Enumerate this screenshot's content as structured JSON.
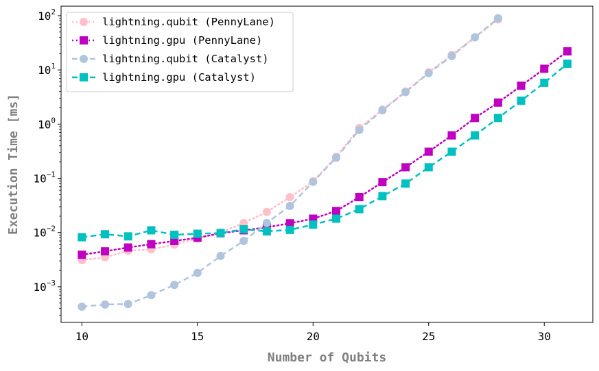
{
  "chart_data": {
    "type": "line",
    "title": "",
    "xlabel": "Number of Qubits",
    "ylabel": "Execution Time [ms]",
    "xscale": "linear",
    "yscale": "log",
    "xlim": [
      9.1,
      32.1
    ],
    "ylim": [
      0.00022,
      150
    ],
    "x_ticks": [
      10,
      15,
      20,
      25,
      30
    ],
    "x_tick_labels": [
      "10",
      "15",
      "20",
      "25",
      "30"
    ],
    "y_ticks": [
      0.001,
      0.01,
      0.1,
      1,
      10,
      100
    ],
    "y_tick_labels": [
      {
        "base": "10",
        "exp": "−3"
      },
      {
        "base": "10",
        "exp": "−2"
      },
      {
        "base": "10",
        "exp": "−1"
      },
      {
        "base": "10",
        "exp": "0"
      },
      {
        "base": "10",
        "exp": "1"
      },
      {
        "base": "10",
        "exp": "2"
      }
    ],
    "grid": false,
    "legend_position": "top-left",
    "series": [
      {
        "name": "lightning.qubit (PennyLane)",
        "color": "#FFC0CB",
        "line": "dotted",
        "marker": "circle",
        "x": [
          10,
          11,
          12,
          13,
          14,
          15,
          16,
          17,
          18,
          19,
          20,
          21,
          22,
          23,
          24,
          25,
          26,
          27,
          28
        ],
        "y": [
          0.0031,
          0.0035,
          0.0046,
          0.0049,
          0.006,
          0.0078,
          0.01,
          0.015,
          0.024,
          0.045,
          0.088,
          0.25,
          0.85,
          1.85,
          4.0,
          9.0,
          19,
          40,
          85
        ]
      },
      {
        "name": "lightning.gpu (PennyLane)",
        "color": "#C000C0",
        "line": "dotted",
        "marker": "square",
        "x": [
          10,
          11,
          12,
          13,
          14,
          15,
          16,
          17,
          18,
          19,
          20,
          21,
          22,
          23,
          24,
          25,
          26,
          27,
          28,
          29,
          30,
          31
        ],
        "y": [
          0.0039,
          0.0045,
          0.0053,
          0.0061,
          0.007,
          0.008,
          0.0097,
          0.011,
          0.0125,
          0.0148,
          0.018,
          0.025,
          0.045,
          0.085,
          0.16,
          0.31,
          0.62,
          1.3,
          2.5,
          5.1,
          10.5,
          22
        ]
      },
      {
        "name": "lightning.qubit (Catalyst)",
        "color": "#B0C4DE",
        "line": "dashed",
        "marker": "circle",
        "x": [
          10,
          11,
          12,
          13,
          14,
          15,
          16,
          17,
          18,
          19,
          20,
          21,
          22,
          23,
          24,
          25,
          26,
          27,
          28
        ],
        "y": [
          0.00043,
          0.00047,
          0.00048,
          0.0007,
          0.00108,
          0.0018,
          0.0037,
          0.007,
          0.015,
          0.031,
          0.086,
          0.24,
          0.78,
          1.8,
          3.9,
          8.7,
          18,
          40,
          90
        ]
      },
      {
        "name": "lightning.gpu (Catalyst)",
        "color": "#00C0C0",
        "line": "dashed",
        "marker": "square",
        "x": [
          10,
          11,
          12,
          13,
          14,
          15,
          16,
          17,
          18,
          19,
          20,
          21,
          22,
          23,
          24,
          25,
          26,
          27,
          28,
          29,
          30,
          31
        ],
        "y": [
          0.0082,
          0.0093,
          0.0085,
          0.011,
          0.0091,
          0.0095,
          0.0098,
          0.0115,
          0.0105,
          0.0112,
          0.014,
          0.018,
          0.027,
          0.047,
          0.08,
          0.16,
          0.31,
          0.62,
          1.3,
          2.7,
          5.8,
          13
        ]
      }
    ]
  }
}
